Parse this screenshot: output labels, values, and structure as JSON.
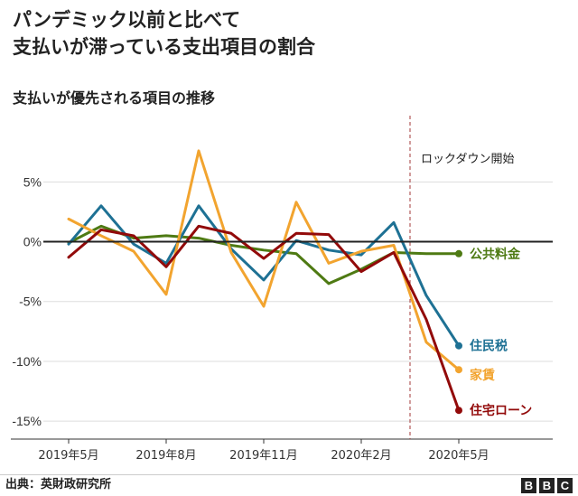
{
  "header": {
    "title_line1": "パンデミック以前と比べて",
    "title_line2": "支払いが滞っている支出項目の割合",
    "subtitle": "支払いが優先される項目の推移"
  },
  "footer": {
    "source": "出典：英財政研究所",
    "logo_letters": [
      "B",
      "B",
      "C"
    ]
  },
  "chart_data": {
    "type": "line",
    "title": "支払いが優先される項目の推移",
    "x": [
      "2019-05",
      "2019-06",
      "2019-07",
      "2019-08",
      "2019-09",
      "2019-10",
      "2019-11",
      "2019-12",
      "2020-01",
      "2020-02",
      "2020-03",
      "2020-04",
      "2020-05"
    ],
    "x_tick_labels": [
      "2019年5月",
      "2019年8月",
      "2019年11月",
      "2020年2月",
      "2020年5月"
    ],
    "x_tick_indices": [
      0,
      3,
      6,
      9,
      12
    ],
    "y_tick_values": [
      5,
      0,
      -5,
      -10,
      -15
    ],
    "y_tick_labels": [
      "5%",
      "0%",
      "-5%",
      "-10%",
      "-15%"
    ],
    "ylim": [
      -16.5,
      8.5
    ],
    "annotation": {
      "label": "ロックダウン開始",
      "x_index": 10.5
    },
    "series": [
      {
        "name": "公共料金",
        "color": "#4e7a13",
        "values": [
          -0.1,
          1.3,
          0.3,
          0.5,
          0.3,
          -0.3,
          -0.7,
          -1.0,
          -3.5,
          -2.3,
          -0.9,
          -1.0,
          -1.0
        ]
      },
      {
        "name": "住民税",
        "color": "#1e7194",
        "values": [
          -0.2,
          3.0,
          -0.2,
          -1.8,
          3.0,
          -0.6,
          -3.2,
          0.1,
          -0.7,
          -1.1,
          1.6,
          -4.5,
          -8.7
        ]
      },
      {
        "name": "家賃",
        "color": "#f2a42f",
        "values": [
          1.9,
          0.5,
          -0.8,
          -4.4,
          7.6,
          -0.9,
          -5.4,
          3.3,
          -1.8,
          -0.8,
          -0.3,
          -8.4,
          -10.7
        ]
      },
      {
        "name": "住宅ローン",
        "color": "#920a0a",
        "values": [
          -1.3,
          1.0,
          0.5,
          -2.1,
          1.3,
          0.7,
          -1.4,
          0.7,
          0.6,
          -2.5,
          -0.9,
          -6.5,
          -14.1
        ]
      }
    ]
  }
}
